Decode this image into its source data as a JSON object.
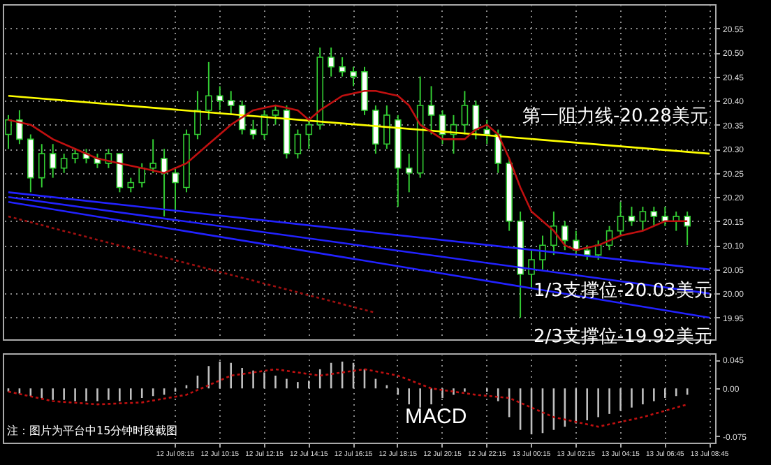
{
  "chart_data": [
    {
      "type": "candlestick",
      "categories": [
        null,
        null,
        null,
        null,
        null,
        null,
        null,
        null,
        null,
        null,
        null,
        null,
        null,
        null,
        null,
        null,
        null,
        null,
        null,
        null,
        null,
        null,
        null,
        null,
        null,
        null,
        null,
        null,
        null,
        null,
        null,
        null,
        null,
        null,
        null,
        null,
        null,
        null,
        null,
        null,
        null,
        null,
        null,
        null,
        null,
        null,
        null,
        null,
        null,
        null,
        null,
        null,
        null,
        null,
        null,
        null,
        null,
        null,
        null,
        null,
        null,
        null,
        null,
        null
      ],
      "ohlc": [
        [
          20.33,
          20.37,
          20.3,
          20.36
        ],
        [
          20.36,
          20.38,
          20.31,
          20.32
        ],
        [
          20.32,
          20.33,
          20.21,
          20.24
        ],
        [
          20.24,
          20.31,
          20.22,
          20.29
        ],
        [
          20.29,
          20.31,
          20.24,
          20.26
        ],
        [
          20.26,
          20.29,
          20.25,
          20.28
        ],
        [
          20.28,
          20.3,
          20.27,
          20.29
        ],
        [
          20.29,
          20.3,
          20.27,
          20.28
        ],
        [
          20.28,
          20.29,
          20.26,
          20.27
        ],
        [
          20.27,
          20.3,
          20.26,
          20.29
        ],
        [
          20.29,
          20.29,
          20.21,
          20.22
        ],
        [
          20.22,
          20.24,
          20.21,
          20.23
        ],
        [
          20.23,
          20.27,
          20.22,
          20.26
        ],
        [
          20.26,
          20.32,
          20.25,
          20.27
        ],
        [
          20.28,
          20.3,
          20.16,
          20.25
        ],
        [
          20.25,
          20.26,
          20.17,
          20.23
        ],
        [
          20.22,
          20.34,
          20.21,
          20.33
        ],
        [
          20.33,
          20.42,
          20.32,
          20.38
        ],
        [
          20.38,
          20.48,
          20.36,
          20.41
        ],
        [
          20.41,
          20.43,
          20.38,
          20.4
        ],
        [
          20.4,
          20.42,
          20.37,
          20.39
        ],
        [
          20.39,
          20.4,
          20.33,
          20.34
        ],
        [
          20.34,
          20.36,
          20.32,
          20.33
        ],
        [
          20.33,
          20.38,
          20.32,
          20.37
        ],
        [
          20.37,
          20.39,
          20.35,
          20.38
        ],
        [
          20.38,
          20.39,
          20.28,
          20.29
        ],
        [
          20.29,
          20.34,
          20.28,
          20.33
        ],
        [
          20.33,
          20.36,
          20.3,
          20.35
        ],
        [
          20.35,
          20.51,
          20.34,
          20.49
        ],
        [
          20.49,
          20.51,
          20.45,
          20.47
        ],
        [
          20.47,
          20.49,
          20.45,
          20.46
        ],
        [
          20.46,
          20.47,
          20.43,
          20.45
        ],
        [
          20.46,
          20.47,
          20.37,
          20.38
        ],
        [
          20.38,
          20.39,
          20.29,
          20.31
        ],
        [
          20.31,
          20.39,
          20.3,
          20.37
        ],
        [
          20.36,
          20.37,
          20.18,
          20.26
        ],
        [
          20.26,
          20.29,
          20.21,
          20.25
        ],
        [
          20.25,
          20.45,
          20.24,
          20.39
        ],
        [
          20.39,
          20.43,
          20.33,
          20.37
        ],
        [
          20.37,
          20.38,
          20.31,
          20.33
        ],
        [
          20.33,
          20.37,
          20.29,
          20.35
        ],
        [
          20.35,
          20.42,
          20.33,
          20.39
        ],
        [
          20.39,
          20.4,
          20.32,
          20.34
        ],
        [
          20.34,
          20.36,
          20.31,
          20.33
        ],
        [
          20.33,
          20.34,
          20.25,
          20.27
        ],
        [
          20.27,
          20.28,
          20.13,
          20.15
        ],
        [
          20.15,
          20.17,
          19.95,
          20.04
        ],
        [
          20.04,
          20.09,
          20.01,
          20.07
        ],
        [
          20.07,
          20.12,
          20.05,
          20.1
        ],
        [
          20.1,
          20.17,
          20.08,
          20.14
        ],
        [
          20.14,
          20.15,
          20.09,
          20.11
        ],
        [
          20.11,
          20.13,
          20.08,
          20.09
        ],
        [
          20.09,
          20.1,
          20.07,
          20.08
        ],
        [
          20.08,
          20.11,
          20.07,
          20.1
        ],
        [
          20.1,
          20.14,
          20.09,
          20.13
        ],
        [
          20.13,
          20.19,
          20.12,
          20.16
        ],
        [
          20.16,
          20.18,
          20.14,
          20.15
        ],
        [
          20.15,
          20.18,
          20.13,
          20.17
        ],
        [
          20.17,
          20.18,
          20.14,
          20.16
        ],
        [
          20.16,
          20.18,
          20.14,
          20.15
        ],
        [
          20.15,
          20.17,
          20.13,
          20.16
        ],
        [
          20.16,
          20.17,
          20.1,
          20.14
        ],
        null,
        null
      ],
      "series": [
        {
          "type": "line",
          "color": "#ffff00",
          "values": [
            20.41,
            null,
            null,
            null,
            null,
            null,
            null,
            null,
            null,
            null,
            null,
            null,
            null,
            null,
            null,
            null,
            null,
            null,
            null,
            null,
            null,
            null,
            null,
            null,
            null,
            null,
            null,
            null,
            null,
            null,
            null,
            null,
            null,
            null,
            null,
            null,
            null,
            null,
            null,
            null,
            null,
            null,
            null,
            null,
            null,
            null,
            null,
            null,
            null,
            null,
            null,
            null,
            null,
            null,
            null,
            null,
            null,
            null,
            null,
            null,
            null,
            null,
            null,
            20.29
          ]
        },
        {
          "type": "line",
          "color": "#2222ff",
          "values": [
            20.21,
            null,
            null,
            null,
            null,
            null,
            null,
            null,
            null,
            null,
            null,
            null,
            null,
            null,
            null,
            null,
            null,
            null,
            null,
            null,
            null,
            null,
            null,
            null,
            null,
            null,
            null,
            null,
            null,
            null,
            null,
            null,
            null,
            null,
            null,
            null,
            null,
            null,
            null,
            null,
            null,
            null,
            null,
            null,
            null,
            null,
            null,
            null,
            null,
            null,
            null,
            null,
            null,
            null,
            null,
            null,
            null,
            null,
            null,
            null,
            null,
            null,
            null,
            20.05
          ]
        },
        {
          "type": "line",
          "color": "#2222ff",
          "values": [
            20.2,
            null,
            null,
            null,
            null,
            null,
            null,
            null,
            null,
            null,
            null,
            null,
            null,
            null,
            null,
            null,
            null,
            null,
            null,
            null,
            null,
            null,
            null,
            null,
            null,
            null,
            null,
            null,
            null,
            null,
            null,
            null,
            null,
            null,
            null,
            null,
            null,
            null,
            null,
            null,
            null,
            null,
            null,
            null,
            null,
            null,
            null,
            null,
            null,
            null,
            null,
            null,
            null,
            null,
            null,
            null,
            null,
            null,
            null,
            null,
            null,
            null,
            null,
            20.0
          ]
        },
        {
          "type": "line",
          "color": "#2222ff",
          "values": [
            20.19,
            null,
            null,
            null,
            null,
            null,
            null,
            null,
            null,
            null,
            null,
            null,
            null,
            null,
            null,
            null,
            null,
            null,
            null,
            null,
            null,
            null,
            null,
            null,
            null,
            null,
            null,
            null,
            null,
            null,
            null,
            null,
            null,
            null,
            null,
            null,
            null,
            null,
            null,
            null,
            null,
            null,
            null,
            null,
            null,
            null,
            null,
            null,
            null,
            null,
            null,
            null,
            null,
            null,
            null,
            null,
            null,
            null,
            null,
            null,
            null,
            null,
            null,
            19.95
          ]
        },
        {
          "type": "line",
          "color": "#a01010",
          "line_style": "dotted",
          "values": [
            20.16,
            null,
            null,
            null,
            null,
            null,
            null,
            null,
            null,
            null,
            null,
            null,
            null,
            null,
            null,
            null,
            null,
            null,
            null,
            null,
            null,
            null,
            null,
            null,
            null,
            null,
            null,
            null,
            null,
            null,
            null,
            null,
            null,
            19.96,
            null,
            null,
            null,
            null,
            null,
            null,
            null,
            null,
            null,
            null,
            null,
            null,
            null,
            null,
            null,
            null,
            null,
            null,
            null,
            null,
            null,
            null,
            null,
            null,
            null,
            null,
            null,
            null,
            null,
            null
          ]
        },
        {
          "type": "line",
          "color": "#c01010",
          "values": [
            20.36,
            null,
            20.35,
            null,
            20.32,
            null,
            20.3,
            null,
            20.28,
            null,
            20.27,
            null,
            20.26,
            null,
            20.25,
            null,
            20.27,
            null,
            20.31,
            null,
            20.35,
            null,
            20.38,
            null,
            20.39,
            null,
            20.38,
            20.36,
            20.38,
            null,
            20.41,
            null,
            20.42,
            20.42,
            null,
            20.41,
            20.39,
            20.35,
            null,
            20.32,
            20.32,
            20.32,
            20.34,
            20.35,
            20.33,
            20.28,
            20.22,
            20.17,
            null,
            20.13,
            20.1,
            20.09,
            null,
            20.1,
            null,
            20.12,
            null,
            20.13,
            null,
            20.15,
            null,
            20.15,
            null,
            null
          ]
        }
      ],
      "ylim": [
        19.905,
        20.6
      ],
      "yticks": [
        19.95,
        {
          "value": 20.0,
          "label": "20.00"
        },
        20.05,
        {
          "value": 20.1,
          "label": "20.10"
        },
        20.15,
        {
          "value": 20.2,
          "label": "20.20"
        },
        20.25,
        {
          "value": 20.3,
          "label": "20.30"
        },
        20.35,
        {
          "value": 20.4,
          "label": "20.40"
        },
        20.45,
        {
          "value": 20.5,
          "label": "20.50"
        },
        20.55
      ],
      "grid": true,
      "tick_labels": "y",
      "annotations": [
        "第一阻力线-20.28美元",
        "1/3支撑位-20.03美元",
        "2/3支撑位-19.92美元"
      ]
    },
    {
      "type": "bar",
      "title": "MACD",
      "color": "#c0c0c0",
      "categories": [
        null,
        null,
        null,
        null,
        null,
        null,
        null,
        null,
        null,
        null,
        null,
        null,
        null,
        null,
        null,
        "12 Jul 08:15",
        null,
        null,
        null,
        "12 Jul 10:15",
        null,
        null,
        null,
        "12 Jul 12:15",
        null,
        null,
        null,
        "12 Jul 14:15",
        null,
        null,
        null,
        "12 Jul 16:15",
        null,
        null,
        null,
        "12 Jul 18:15",
        null,
        null,
        null,
        "12 Jul 20:15",
        null,
        null,
        null,
        "12 Jul 22:15",
        null,
        null,
        null,
        "13 Jul 00:15",
        null,
        null,
        null,
        "13 Jul 02:15",
        null,
        null,
        null,
        "13 Jul 04:15",
        null,
        null,
        null,
        "13 Jul 06:45",
        null,
        null,
        null,
        "13 Jul 08:45"
      ],
      "values": [
        -0.005,
        -0.008,
        -0.012,
        -0.015,
        -0.018,
        -0.018,
        -0.02,
        -0.02,
        -0.02,
        -0.018,
        -0.02,
        -0.018,
        -0.015,
        -0.012,
        -0.01,
        -0.005,
        0.005,
        0.02,
        0.035,
        0.042,
        0.04,
        0.032,
        0.028,
        0.025,
        0.02,
        0.015,
        0.01,
        0.012,
        0.03,
        0.04,
        0.042,
        0.04,
        0.03,
        0.015,
        0.005,
        -0.01,
        -0.025,
        -0.03,
        -0.025,
        -0.015,
        -0.01,
        -0.005,
        0.0,
        -0.005,
        -0.02,
        -0.045,
        -0.065,
        -0.072,
        -0.07,
        -0.065,
        -0.06,
        -0.055,
        -0.05,
        -0.045,
        -0.04,
        -0.035,
        -0.03,
        -0.025,
        -0.02,
        -0.015,
        -0.012,
        -0.01,
        null,
        null
      ],
      "series": [
        {
          "type": "line",
          "color": "#c01010",
          "line_style": "dotted",
          "values": [
            -0.005,
            null,
            null,
            null,
            -0.02,
            null,
            null,
            null,
            -0.025,
            null,
            null,
            null,
            -0.022,
            null,
            null,
            null,
            -0.01,
            null,
            null,
            null,
            0.02,
            null,
            null,
            null,
            0.03,
            null,
            null,
            null,
            0.02,
            null,
            null,
            null,
            0.03,
            null,
            null,
            0.02,
            null,
            null,
            0.0,
            null,
            null,
            null,
            -0.01,
            null,
            null,
            -0.015,
            null,
            null,
            null,
            -0.045,
            null,
            null,
            null,
            -0.06,
            null,
            null,
            null,
            -0.045,
            null,
            null,
            null,
            -0.025,
            null,
            null
          ]
        }
      ],
      "ylim": [
        -0.085,
        0.055
      ],
      "yticks": [
        -0.075,
        {
          "value": 0,
          "label": "0.00"
        },
        0.045
      ],
      "grid": "x",
      "annotations": [
        "注：图片为平台中15分钟时段截图"
      ]
    }
  ]
}
